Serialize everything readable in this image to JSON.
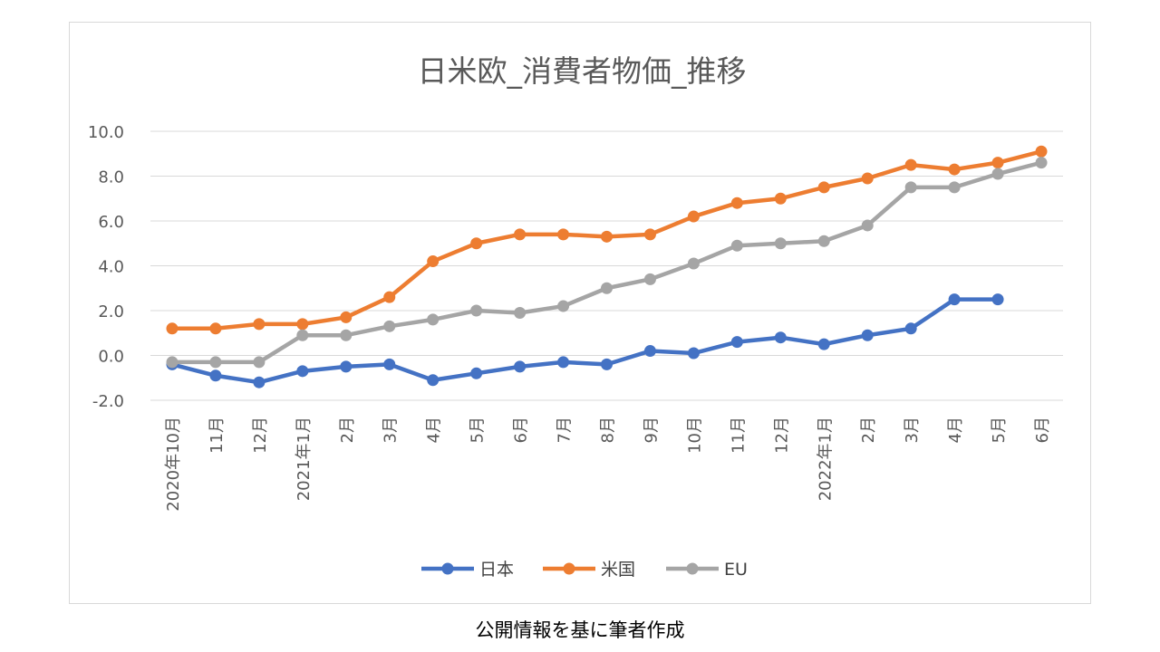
{
  "source_note": "公開情報を基に筆者作成",
  "chart_data": {
    "type": "line",
    "title": "日米欧_消費者物価_推移",
    "xlabel": "",
    "ylabel": "",
    "ylim": [
      -2.0,
      10.0
    ],
    "yticks": [
      "10.0",
      "8.0",
      "6.0",
      "4.0",
      "2.0",
      "0.0",
      "-2.0"
    ],
    "grid": true,
    "legend_position": "bottom",
    "categories": [
      "2020年10月",
      "11月",
      "12月",
      "2021年1月",
      "2月",
      "3月",
      "4月",
      "5月",
      "6月",
      "7月",
      "8月",
      "9月",
      "10月",
      "11月",
      "12月",
      "2022年1月",
      "2月",
      "3月",
      "4月",
      "5月",
      "6月"
    ],
    "series": [
      {
        "name": "日本",
        "color": "#4472c4",
        "values": [
          -0.4,
          -0.9,
          -1.2,
          -0.7,
          -0.5,
          -0.4,
          -1.1,
          -0.8,
          -0.5,
          -0.3,
          -0.4,
          0.2,
          0.1,
          0.6,
          0.8,
          0.5,
          0.9,
          1.2,
          2.5,
          2.5,
          null
        ]
      },
      {
        "name": "米国",
        "color": "#ed7d31",
        "values": [
          1.2,
          1.2,
          1.4,
          1.4,
          1.7,
          2.6,
          4.2,
          5.0,
          5.4,
          5.4,
          5.3,
          5.4,
          6.2,
          6.8,
          7.0,
          7.5,
          7.9,
          8.5,
          8.3,
          8.6,
          9.1
        ]
      },
      {
        "name": "EU",
        "color": "#a5a5a5",
        "values": [
          -0.3,
          -0.3,
          -0.3,
          0.9,
          0.9,
          1.3,
          1.6,
          2.0,
          1.9,
          2.2,
          3.0,
          3.4,
          4.1,
          4.9,
          5.0,
          5.1,
          5.8,
          7.5,
          7.5,
          8.1,
          8.6
        ]
      }
    ]
  }
}
